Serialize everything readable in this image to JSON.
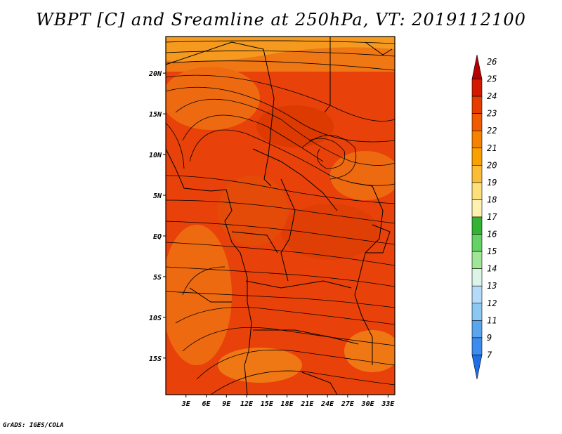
{
  "title": "WBPT [C] and Sreamline at 250hPa, VT: 2019112100",
  "credit": "GrADS: IGES/COLA",
  "map": {
    "lat_labels": [
      "20N",
      "15N",
      "10N",
      "5N",
      "EQ",
      "5S",
      "10S",
      "15S"
    ],
    "lon_labels": [
      "3E",
      "6E",
      "9E",
      "12E",
      "15E",
      "18E",
      "21E",
      "24E",
      "27E",
      "30E",
      "33E"
    ],
    "lat_values": [
      20,
      15,
      10,
      5,
      0,
      -5,
      -10,
      -15
    ],
    "lon_values": [
      3,
      6,
      9,
      12,
      15,
      18,
      21,
      24,
      27,
      30,
      33
    ],
    "lat_range": [
      -19.5,
      24.5
    ],
    "lon_range": [
      0,
      34
    ]
  },
  "colorbar": {
    "labels": [
      "26",
      "25",
      "24",
      "23",
      "22",
      "21",
      "20",
      "19",
      "18",
      "17",
      "16",
      "15",
      "14",
      "13",
      "12",
      "11",
      "9",
      "7"
    ],
    "colors": [
      "#b40000",
      "#d21a00",
      "#e63c00",
      "#f05a00",
      "#f58200",
      "#faa000",
      "#fbbd36",
      "#fde07a",
      "#fff2b0",
      "#32b432",
      "#64d264",
      "#a0e696",
      "#dcf5e6",
      "#b4dcfa",
      "#8cc8f0",
      "#5aa5ee",
      "#3c8cf0",
      "#1e6ee6"
    ]
  },
  "streamline_note": "wind flow"
}
